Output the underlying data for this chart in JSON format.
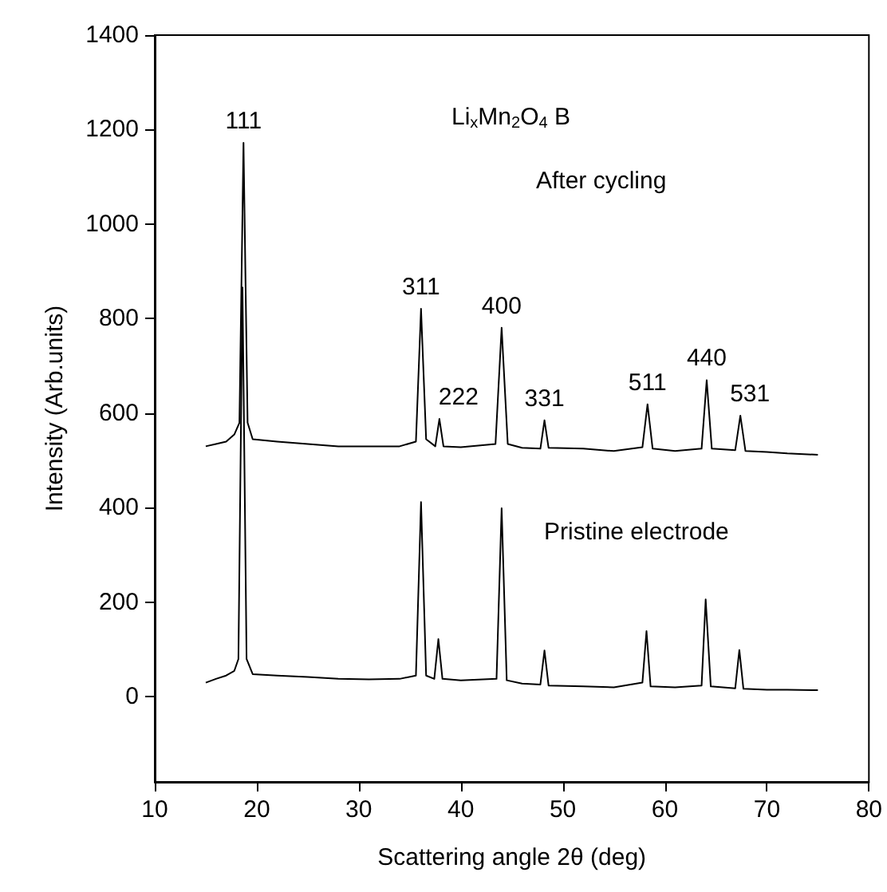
{
  "chart_data": {
    "type": "line",
    "xlabel": "Scattering angle 2θ (deg)",
    "ylabel": "Intensity (Arb.units)",
    "xlim": [
      10,
      80
    ],
    "xticks": [
      10,
      20,
      30,
      40,
      50,
      60,
      70,
      80
    ],
    "ylim": [
      -180,
      1400
    ],
    "yticks": [
      0,
      200,
      400,
      600,
      800,
      1000,
      1200,
      1400
    ],
    "marker": "none",
    "line_style": "solid",
    "series": [
      {
        "color": "#000000",
        "x": [
          15,
          16,
          17,
          17.8,
          18.3,
          18.7,
          19.1,
          19.6,
          22,
          25,
          28,
          31,
          34,
          35.6,
          36.1,
          36.6,
          37.5,
          37.9,
          38.3,
          40,
          43.4,
          44.0,
          44.6,
          46,
          47.8,
          48.2,
          48.6,
          52,
          55,
          57.8,
          58.3,
          58.8,
          61,
          63.6,
          64.1,
          64.6,
          66.9,
          67.4,
          67.9,
          70,
          72,
          75
        ],
        "values": [
          530,
          535,
          540,
          555,
          580,
          1172,
          580,
          545,
          540,
          535,
          530,
          530,
          530,
          540,
          821,
          545,
          530,
          588,
          530,
          528,
          535,
          781,
          535,
          527,
          525,
          585,
          527,
          525,
          520,
          528,
          619,
          525,
          520,
          525,
          670,
          525,
          522,
          595,
          520,
          518,
          515,
          512
        ]
      },
      {
        "color": "#000000",
        "x": [
          15,
          16,
          17,
          17.8,
          18.2,
          18.6,
          19.0,
          19.6,
          22,
          25,
          28,
          31,
          34,
          35.6,
          36.1,
          36.6,
          37.4,
          37.8,
          38.2,
          40,
          43.5,
          44.0,
          44.5,
          46,
          47.8,
          48.2,
          48.6,
          52,
          55,
          57.8,
          58.2,
          58.6,
          61,
          63.6,
          64.0,
          64.5,
          66.9,
          67.3,
          67.7,
          70,
          72,
          75
        ],
        "values": [
          30,
          38,
          45,
          55,
          80,
          866,
          80,
          48,
          45,
          42,
          38,
          37,
          38,
          45,
          412,
          45,
          38,
          122,
          38,
          35,
          38,
          399,
          35,
          28,
          26,
          98,
          24,
          22,
          20,
          30,
          139,
          22,
          20,
          24,
          206,
          22,
          18,
          99,
          17,
          15,
          15,
          14
        ]
      }
    ],
    "annotations": [
      {
        "text": "111",
        "x": 18.7,
        "y": 1172
      },
      {
        "text": "311",
        "x": 36.1,
        "y": 821
      },
      {
        "text": "222",
        "x": 37.9,
        "y": 588
      },
      {
        "text": "400",
        "x": 44.0,
        "y": 781
      },
      {
        "text": "331",
        "x": 48.2,
        "y": 585
      },
      {
        "text": "511",
        "x": 58.3,
        "y": 619
      },
      {
        "text": "440",
        "x": 64.1,
        "y": 670
      },
      {
        "text": "531",
        "x": 67.4,
        "y": 595
      },
      "Li$_{x}$Mn$_{2}$O$_{4}$ B",
      "After cycling",
      "Pristine electrode"
    ]
  }
}
